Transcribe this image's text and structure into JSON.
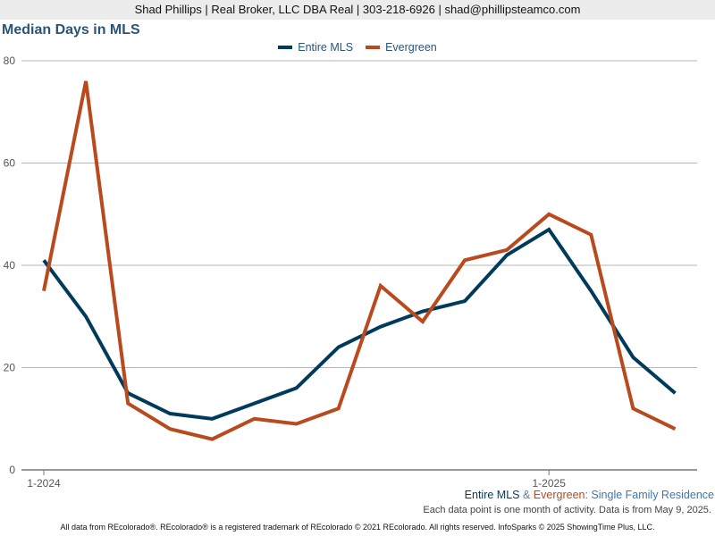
{
  "banner": {
    "text": "Shad Phillips | Real Broker, LLC DBA Real | 303-218-6926 | shad@phillipsteamco.com"
  },
  "colors": {
    "entire_mls": "#003b5c",
    "evergreen": "#b94a1e",
    "title": "#2a5478",
    "grid": "#b5b5b5"
  },
  "subtitle": {
    "part1": "Entire MLS",
    "sep": " & ",
    "part2": "Evergreen",
    "part3": ": Single Family Residence"
  },
  "note": "Each data point is one month of activity. Data is from May 9, 2025.",
  "footer": "All data from REcolorado®. REcolorado® is a registered trademark of REcolorado © 2021 REcolorado. All rights reserved. InfoSparks © 2025 ShowingTime Plus, LLC.",
  "chart_data": {
    "type": "line",
    "title": "Median Days in MLS",
    "x": [
      "2024-01",
      "2024-02",
      "2024-03",
      "2024-04",
      "2024-05",
      "2024-06",
      "2024-07",
      "2024-08",
      "2024-09",
      "2024-10",
      "2024-11",
      "2024-12",
      "2025-01",
      "2025-02",
      "2025-03",
      "2025-04"
    ],
    "x_tick_labels": [
      {
        "index": 0,
        "label": "1-2024"
      },
      {
        "index": 12,
        "label": "1-2025"
      }
    ],
    "ylim": [
      0,
      80
    ],
    "y_ticks": [
      0,
      20,
      40,
      60,
      80
    ],
    "grid": true,
    "legend_position": "top-center",
    "series": [
      {
        "name": "Entire MLS",
        "color": "#003b5c",
        "values": [
          41,
          30,
          15,
          11,
          10,
          13,
          16,
          24,
          28,
          31,
          33,
          42,
          47,
          35,
          22,
          15
        ]
      },
      {
        "name": "Evergreen",
        "color": "#b94a1e",
        "values": [
          35,
          76,
          13,
          8,
          6,
          10,
          9,
          12,
          36,
          29,
          41,
          43,
          50,
          46,
          12,
          8
        ]
      }
    ]
  }
}
